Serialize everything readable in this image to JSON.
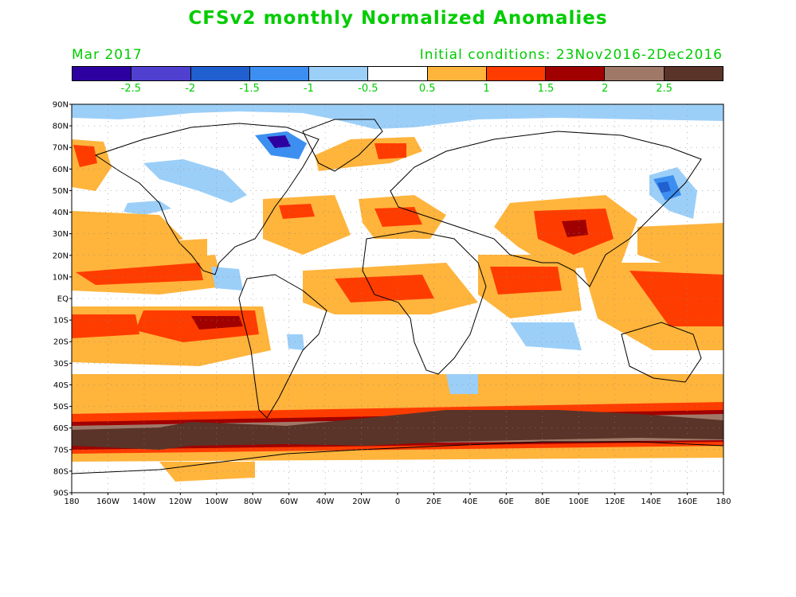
{
  "title": "CFSv2 monthly Normalized Anomalies",
  "forecast_month": "Mar 2017",
  "initial_conditions": "Initial conditions: 23Nov2016-2Dec2016",
  "colorbar": {
    "colors": [
      "#2d00a0",
      "#5040d0",
      "#1f5fd0",
      "#3c8ff0",
      "#9ccff8",
      "#ffffff",
      "#ffb43c",
      "#ff3c00",
      "#a00000",
      "#a07868",
      "#5a3428"
    ],
    "labels": [
      "-2.5",
      "-2",
      "-1.5",
      "-1",
      "-0.5",
      "0.5",
      "1",
      "1.5",
      "2",
      "2.5"
    ]
  },
  "axes": {
    "lat_labels": [
      "90N",
      "80N",
      "70N",
      "60N",
      "50N",
      "40N",
      "30N",
      "20N",
      "10N",
      "EQ",
      "10S",
      "20S",
      "30S",
      "40S",
      "50S",
      "60S",
      "70S",
      "80S",
      "90S"
    ],
    "lon_labels": [
      "180",
      "160W",
      "140W",
      "120W",
      "100W",
      "80W",
      "60W",
      "40W",
      "20W",
      "0",
      "20E",
      "40E",
      "60E",
      "80E",
      "100E",
      "120E",
      "140E",
      "160E",
      "180"
    ]
  }
}
